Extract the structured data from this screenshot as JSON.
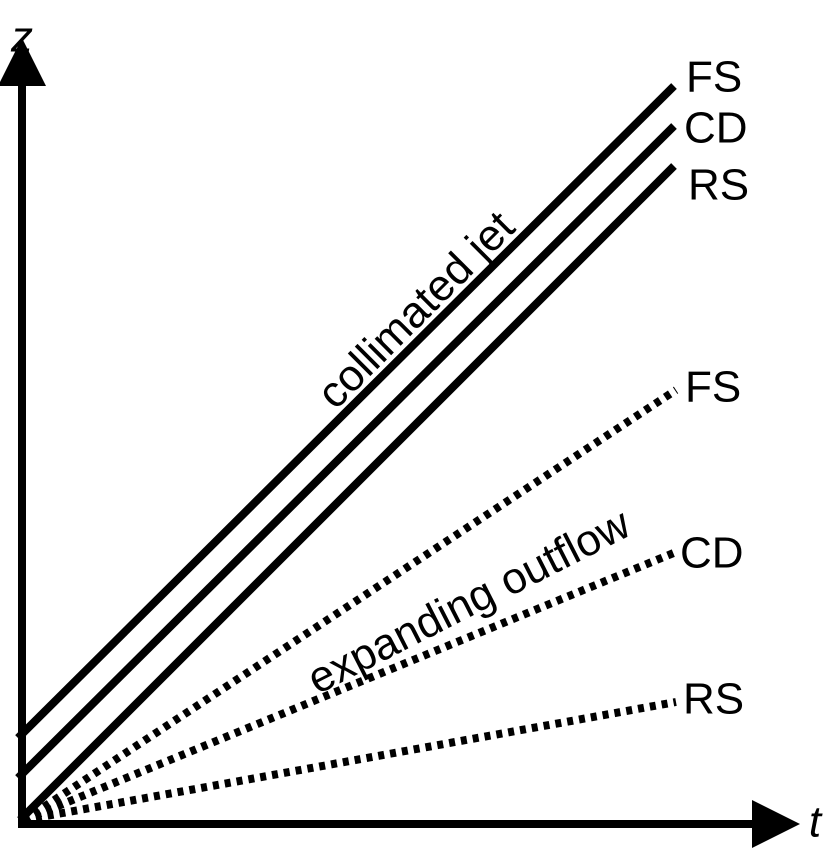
{
  "axes": {
    "x_label": "t",
    "y_label": "z"
  },
  "collimated_jet": {
    "label": "collimated jet",
    "lines": [
      "FS",
      "CD",
      "RS"
    ]
  },
  "expanding_outflow": {
    "label": "expanding outflow",
    "lines": [
      "FS",
      "CD",
      "RS"
    ]
  }
}
